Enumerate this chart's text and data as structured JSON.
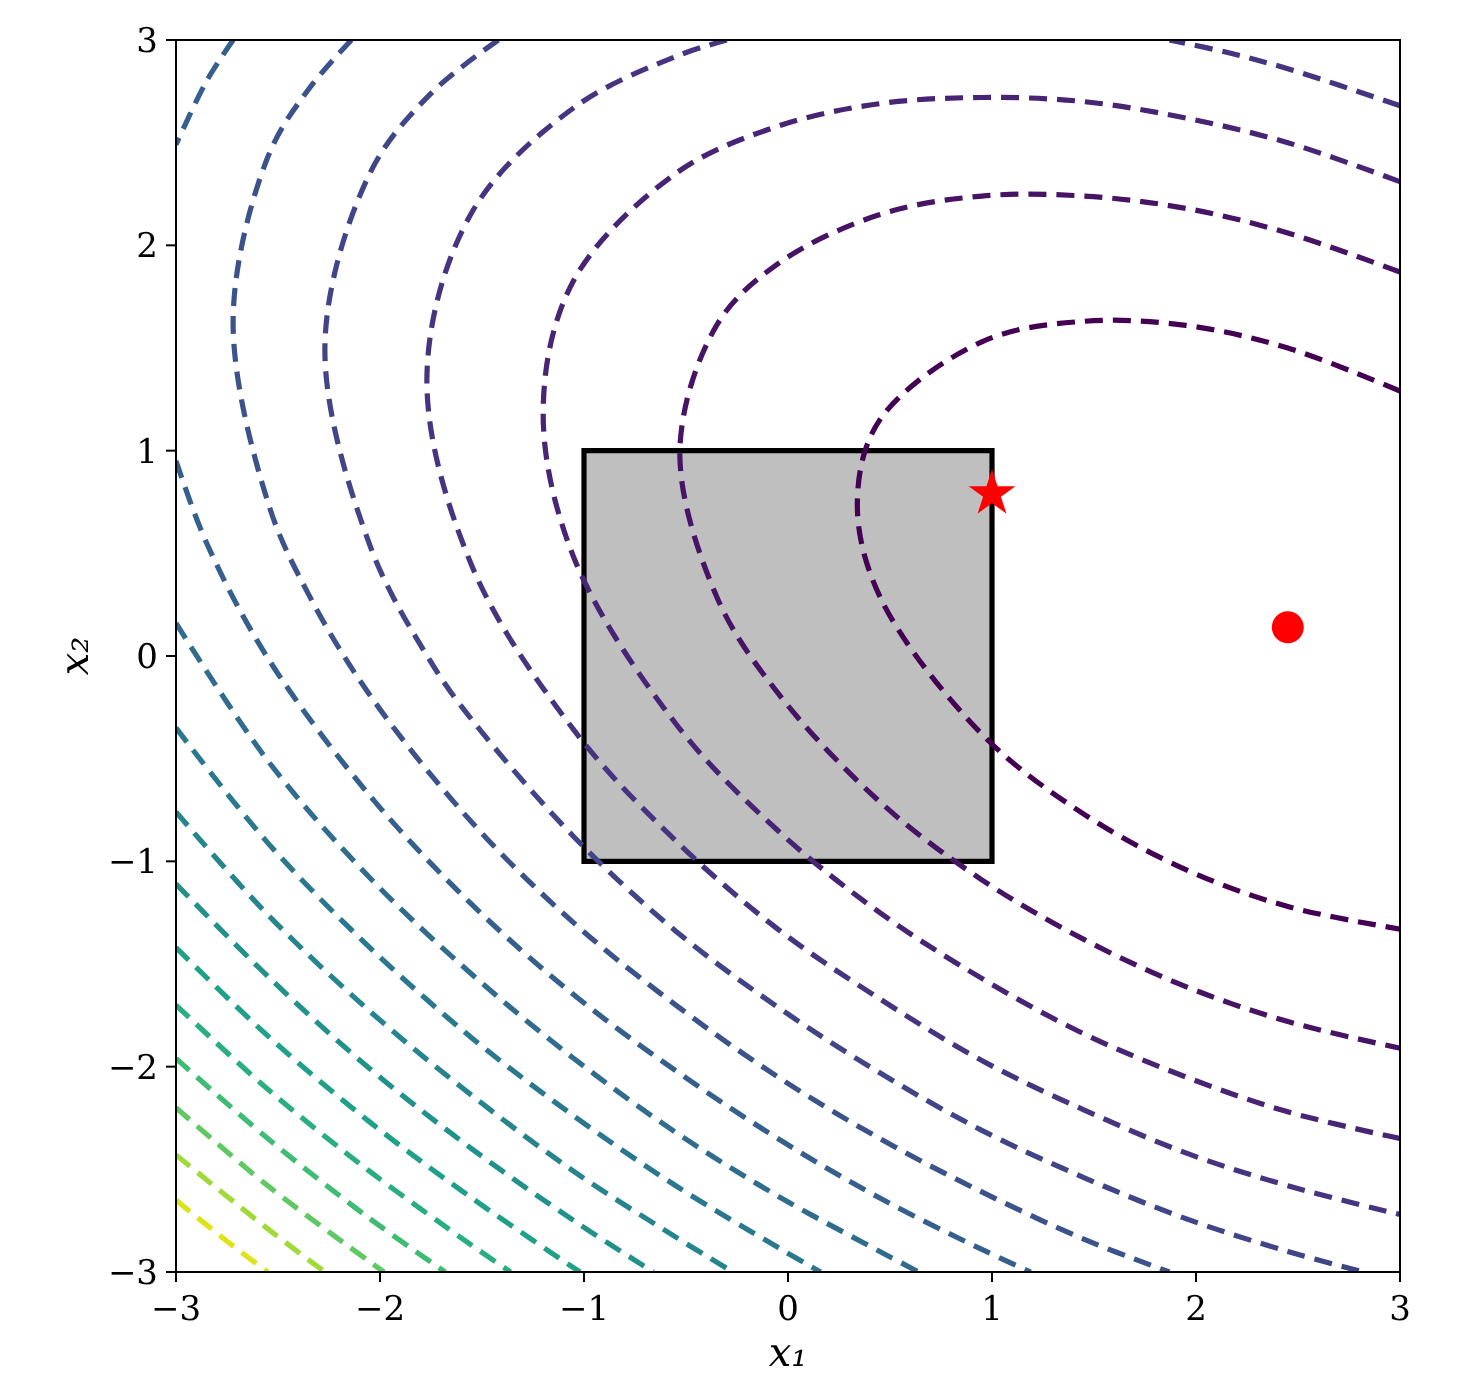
{
  "chart_data": {
    "type": "line",
    "xlabel": "x₁",
    "ylabel": "x₂",
    "xlim": [
      -3,
      3
    ],
    "ylim": [
      -3,
      3
    ],
    "xticks": [
      {
        "value": -3,
        "label": "−3"
      },
      {
        "value": -2,
        "label": "−2"
      },
      {
        "value": -1,
        "label": "−1"
      },
      0,
      1,
      2,
      3
    ],
    "yticks": [
      {
        "value": -3,
        "label": "−3"
      },
      {
        "value": -2,
        "label": "−2"
      },
      {
        "value": -1,
        "label": "−1"
      },
      0,
      1,
      2,
      3
    ],
    "line_style": "dashed",
    "marker": "none",
    "series": [
      {
        "type": "area",
        "color": "#bfbfbf",
        "x": [
          -1,
          -1,
          1,
          1,
          -1
        ],
        "values": [
          -1,
          1,
          1,
          -1,
          -1
        ]
      },
      {
        "color": "#440154",
        "x": [
          3,
          2.45,
          1.95,
          1.45,
          0.95,
          0.45,
          0.34,
          0.45,
          0.95,
          1.45,
          1.95,
          2.45,
          3
        ],
        "values": [
          1.29,
          1.5,
          1.61,
          1.63,
          1.53,
          1.15,
          0.75,
          0.29,
          -0.38,
          -0.77,
          -1.04,
          -1.22,
          -1.33
        ]
      },
      {
        "color": "#471365",
        "x": [
          3,
          2.45,
          1.95,
          1.45,
          0.95,
          0.45,
          -0.05,
          -0.35,
          -0.53,
          -0.35,
          -0.05,
          0.45,
          0.95,
          1.45,
          1.95,
          2.45,
          3
        ],
        "values": [
          1.87,
          2.06,
          2.18,
          2.24,
          2.24,
          2.15,
          1.91,
          1.61,
          1.0,
          0.29,
          -0.18,
          -0.71,
          -1.09,
          -1.38,
          -1.61,
          -1.78,
          -1.91
        ]
      },
      {
        "color": "#482475",
        "x": [
          3,
          2.45,
          1.95,
          1.45,
          0.95,
          0.45,
          -0.05,
          -0.55,
          -1.05,
          -1.2,
          -1.05,
          -0.55,
          -0.05,
          0.45,
          0.95,
          1.45,
          1.95,
          2.45,
          3
        ],
        "values": [
          2.31,
          2.5,
          2.62,
          2.7,
          2.72,
          2.69,
          2.58,
          2.35,
          1.83,
          1.2,
          0.48,
          -0.33,
          -0.85,
          -1.25,
          -1.57,
          -1.84,
          -2.05,
          -2.22,
          -2.35
        ]
      },
      {
        "color": "#463480",
        "x": [
          3,
          2.45,
          2.15,
          1.87
        ],
        "values": [
          2.68,
          2.86,
          2.94,
          3
        ]
      },
      {
        "color": "#463480",
        "x": [
          -0.3,
          -0.55,
          -1.05,
          -1.55,
          -1.77,
          -1.55,
          -1.05,
          -0.55,
          -0.05,
          0.45,
          0.95,
          1.45,
          1.95,
          2.45,
          3
        ],
        "values": [
          3,
          2.92,
          2.67,
          2.16,
          1.36,
          0.44,
          -0.36,
          -0.9,
          -1.33,
          -1.67,
          -1.97,
          -2.21,
          -2.42,
          -2.58,
          -2.72
        ]
      },
      {
        "color": "#414487",
        "x": [
          -1.42,
          -1.75,
          -2.05,
          -2.27,
          -2.05,
          -1.75,
          -1.55,
          -1.05,
          -0.55,
          -0.05,
          0.45,
          0.95,
          1.45,
          1.95,
          2.45,
          2.82
        ],
        "values": [
          3,
          2.74,
          2.35,
          1.51,
          0.54,
          -0.03,
          -0.31,
          -0.88,
          -1.34,
          -1.71,
          -2.03,
          -2.31,
          -2.54,
          -2.74,
          -2.9,
          -3
        ]
      },
      {
        "color": "#3b528b",
        "x": [
          -2.14,
          -2.35,
          -2.55,
          -2.72,
          -2.55,
          -2.35,
          -2.05,
          -1.55,
          -1.05,
          -0.55,
          -0.05,
          0.45,
          0.95,
          1.45,
          1.87
        ],
        "values": [
          3,
          2.76,
          2.43,
          1.64,
          0.75,
          0.3,
          -0.19,
          -0.81,
          -1.3,
          -1.7,
          -2.05,
          -2.35,
          -2.61,
          -2.84,
          -3
        ]
      },
      {
        "color": "#355f8d",
        "x": [
          -2.72,
          -2.85,
          -3
        ],
        "values": [
          3,
          2.8,
          2.49
        ]
      },
      {
        "color": "#355f8d",
        "x": [
          -3,
          -2.85,
          -2.55,
          -2.05,
          -1.55,
          -1.05,
          -0.55,
          -0.05,
          0.45,
          0.95,
          1.19
        ],
        "values": [
          0.95,
          0.55,
          -0.01,
          -0.68,
          -1.21,
          -1.65,
          -2.02,
          -2.35,
          -2.64,
          -2.89,
          -3
        ]
      },
      {
        "color": "#2f6c8e",
        "x": [
          -3,
          -2.55,
          -2.05,
          -1.55,
          -1.05,
          -0.55,
          -0.05,
          0.45,
          0.64
        ],
        "values": [
          0.16,
          -0.51,
          -1.08,
          -1.55,
          -1.96,
          -2.32,
          -2.63,
          -2.9,
          -3
        ]
      },
      {
        "color": "#2a788e",
        "x": [
          -3,
          -2.55,
          -2.05,
          -1.55,
          -1.05,
          -0.55,
          -0.05,
          0.16
        ],
        "values": [
          -0.35,
          -0.91,
          -1.42,
          -1.86,
          -2.24,
          -2.58,
          -2.88,
          -3
        ]
      },
      {
        "color": "#25848e",
        "x": [
          -3,
          -2.55,
          -2.05,
          -1.55,
          -1.05,
          -0.55,
          -0.27
        ],
        "values": [
          -0.76,
          -1.26,
          -1.73,
          -2.14,
          -2.51,
          -2.83,
          -3
        ]
      },
      {
        "color": "#21918c",
        "x": [
          -3,
          -2.55,
          -2.05,
          -1.55,
          -1.05,
          -0.66
        ],
        "values": [
          -1.11,
          -1.56,
          -2.01,
          -2.4,
          -2.75,
          -3
        ]
      },
      {
        "color": "#1fa088",
        "x": [
          -3,
          -2.55,
          -2.05,
          -1.55,
          -1.02
        ],
        "values": [
          -1.42,
          -1.85,
          -2.27,
          -2.64,
          -3
        ]
      },
      {
        "color": "#28ae80",
        "x": [
          -3,
          -2.55,
          -2.05,
          -1.55,
          -1.36
        ],
        "values": [
          -1.7,
          -2.11,
          -2.51,
          -2.87,
          -3
        ]
      },
      {
        "color": "#3fbc73",
        "x": [
          -3,
          -2.55,
          -2.05,
          -1.68
        ],
        "values": [
          -1.96,
          -2.35,
          -2.74,
          -3
        ]
      },
      {
        "color": "#5ec962",
        "x": [
          -3,
          -2.55,
          -2.05,
          -1.98
        ],
        "values": [
          -2.2,
          -2.58,
          -2.95,
          -3
        ]
      },
      {
        "color": "#a0da39",
        "x": [
          -3,
          -2.55,
          -2.27
        ],
        "values": [
          -2.43,
          -2.79,
          -3
        ]
      },
      {
        "color": "#dde318",
        "x": [
          -3,
          -2.75,
          -2.55
        ],
        "values": [
          -2.65,
          -2.85,
          -3
        ]
      },
      {
        "type": "scatter",
        "marker": "star",
        "color": "#ff0000",
        "x": [
          1
        ],
        "values": [
          0.79
        ]
      },
      {
        "type": "scatter",
        "marker": "circle",
        "color": "#ff0000",
        "x": [
          2.45
        ],
        "values": [
          0.14
        ]
      }
    ]
  }
}
